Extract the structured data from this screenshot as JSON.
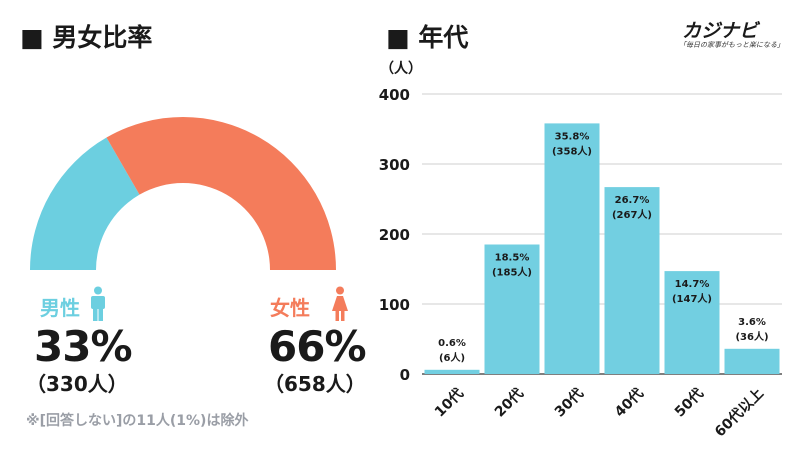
{
  "left_panel": {
    "title": "■ 男女比率",
    "male": {
      "label": "男性",
      "percent": "33%",
      "count": "（330人）",
      "color": "#6ccfe0",
      "icon": "male-person-icon"
    },
    "female": {
      "label": "女性",
      "percent": "66%",
      "count": "（658人）",
      "color": "#f47c5b",
      "icon": "female-person-icon"
    },
    "note": "※[回答しない]の11人(1%)は除外"
  },
  "right_panel": {
    "title": "■ 年代",
    "unit": "（人）"
  },
  "logo": {
    "name": "カジナビ",
    "tagline": "「毎日の家事がもっと楽になる」"
  },
  "chart_data": [
    {
      "type": "pie",
      "title": "男女比率",
      "style": "half-donut",
      "slices": [
        {
          "name": "男性",
          "value": 33,
          "count": 330,
          "color": "#6ccfe0"
        },
        {
          "name": "女性",
          "value": 66,
          "count": 658,
          "color": "#f47c5b"
        }
      ]
    },
    {
      "type": "bar",
      "title": "年代",
      "ylabel": "（人）",
      "ylim": [
        0,
        400
      ],
      "yticks": [
        0,
        100,
        200,
        300,
        400
      ],
      "grid": true,
      "bar_color": "#72cfe1",
      "categories": [
        "10代",
        "20代",
        "30代",
        "40代",
        "50代",
        "60代以上"
      ],
      "values": [
        6,
        185,
        358,
        267,
        147,
        36
      ],
      "labels_pct": [
        "0.6%",
        "18.5%",
        "35.8%",
        "26.7%",
        "14.7%",
        "3.6%"
      ],
      "labels_count": [
        "(6人)",
        "(185人)",
        "(358人)",
        "(267人)",
        "(147人)",
        "(36人)"
      ]
    }
  ]
}
